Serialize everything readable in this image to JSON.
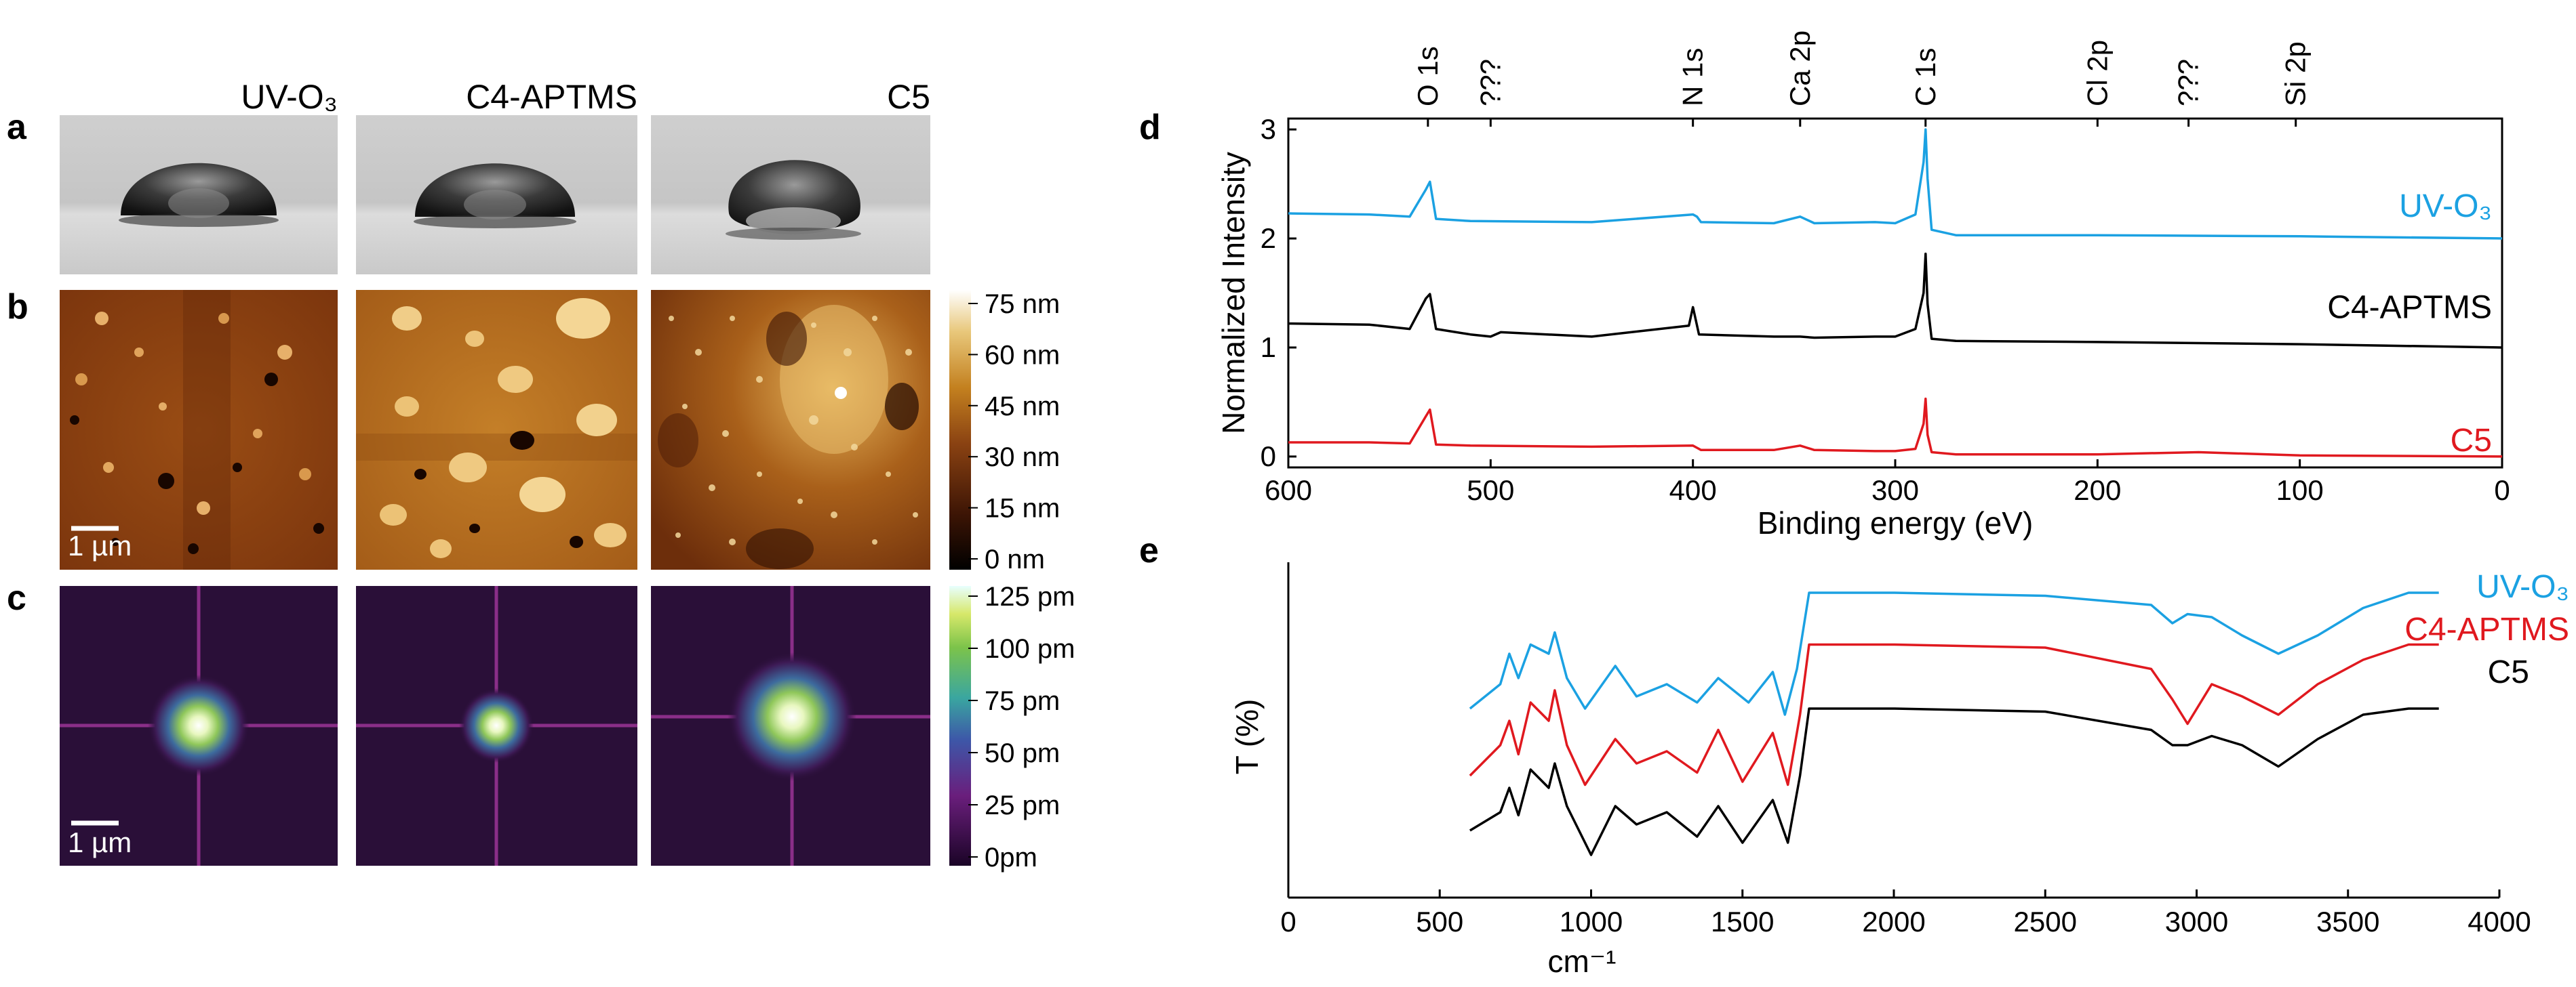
{
  "panels": {
    "a": "a",
    "b": "b",
    "c": "c",
    "d": "d",
    "e": "e"
  },
  "columns": [
    "UV-O₃",
    "C4-APTMS",
    "C5"
  ],
  "scalebar_label": "1 µm",
  "colorbar_b": [
    "75 nm",
    "60 nm",
    "45 nm",
    "30 nm",
    "15 nm",
    "0 nm"
  ],
  "colorbar_c": [
    "125 pm",
    "100 pm",
    "75 pm",
    "50 pm",
    "25 pm",
    "0pm"
  ],
  "colors": {
    "uv": "#1ba1e2",
    "c4": "#000000",
    "c5": "#e0191f",
    "afm_dark": "#1e0a02",
    "afm_mid": "#b8661e",
    "afm_light": "#fbf2d0",
    "fft_bg": "#2a0f38"
  },
  "chart_data": [
    {
      "id": "d",
      "type": "line",
      "xlabel": "Binding energy (eV)",
      "ylabel": "Normalized Intensity",
      "xlim": [
        600,
        0
      ],
      "ylim": [
        -0.1,
        3.1
      ],
      "xticks": [
        600,
        500,
        400,
        300,
        200,
        100,
        0
      ],
      "yticks": [
        0,
        1,
        2,
        3
      ],
      "peak_labels": [
        {
          "label": "O 1s",
          "x": 531
        },
        {
          "label": "???",
          "x": 500
        },
        {
          "label": "N 1s",
          "x": 400
        },
        {
          "label": "Ca 2p",
          "x": 347
        },
        {
          "label": "C 1s",
          "x": 285
        },
        {
          "label": "Cl 2p",
          "x": 200
        },
        {
          "label": "???",
          "x": 155
        },
        {
          "label": "Si 2p",
          "x": 102
        }
      ],
      "series": [
        {
          "name": "UV-O₃",
          "color": "#1ba1e2",
          "offset": 2.0,
          "x": [
            600,
            560,
            540,
            532,
            530,
            527,
            510,
            450,
            400,
            398,
            396,
            360,
            347,
            340,
            310,
            300,
            290,
            286,
            285,
            284,
            282,
            270,
            200,
            100,
            0
          ],
          "y": [
            0.23,
            0.22,
            0.2,
            0.45,
            0.52,
            0.18,
            0.16,
            0.15,
            0.22,
            0.2,
            0.15,
            0.14,
            0.2,
            0.14,
            0.15,
            0.14,
            0.22,
            0.7,
            1.0,
            0.55,
            0.08,
            0.03,
            0.03,
            0.02,
            0.0
          ]
        },
        {
          "name": "C4-APTMS",
          "color": "#000000",
          "offset": 1.0,
          "x": [
            600,
            560,
            540,
            532,
            530,
            527,
            510,
            500,
            495,
            450,
            402,
            400,
            397,
            360,
            347,
            340,
            310,
            300,
            290,
            286,
            285,
            284,
            282,
            270,
            200,
            100,
            0
          ],
          "y": [
            0.22,
            0.21,
            0.17,
            0.45,
            0.49,
            0.17,
            0.12,
            0.1,
            0.14,
            0.1,
            0.2,
            0.37,
            0.12,
            0.1,
            0.1,
            0.09,
            0.1,
            0.1,
            0.17,
            0.5,
            0.86,
            0.4,
            0.08,
            0.06,
            0.05,
            0.03,
            0.0
          ]
        },
        {
          "name": "C5",
          "color": "#e0191f",
          "offset": 0.0,
          "x": [
            600,
            560,
            540,
            532,
            530,
            527,
            510,
            450,
            400,
            398,
            396,
            360,
            347,
            340,
            310,
            300,
            290,
            286,
            285,
            284,
            282,
            270,
            200,
            150,
            100,
            0
          ],
          "y": [
            0.13,
            0.13,
            0.12,
            0.37,
            0.43,
            0.11,
            0.1,
            0.09,
            0.1,
            0.08,
            0.06,
            0.06,
            0.1,
            0.06,
            0.05,
            0.05,
            0.07,
            0.3,
            0.53,
            0.2,
            0.04,
            0.02,
            0.02,
            0.04,
            0.01,
            0.0
          ]
        }
      ]
    },
    {
      "id": "e",
      "type": "line",
      "xlabel": "cm⁻¹",
      "ylabel": "T (%)",
      "xlim": [
        0,
        4000
      ],
      "ylim": [
        0,
        1.1
      ],
      "xticks": [
        0,
        500,
        1000,
        1500,
        2000,
        2500,
        3000,
        3500,
        4000
      ],
      "series": [
        {
          "name": "UV-O₃",
          "color": "#1ba1e2",
          "x": [
            600,
            700,
            730,
            760,
            800,
            860,
            880,
            920,
            980,
            1080,
            1150,
            1250,
            1350,
            1420,
            1520,
            1600,
            1640,
            1680,
            1720,
            2000,
            2500,
            2850,
            2920,
            2970,
            3050,
            3150,
            3270,
            3400,
            3550,
            3700,
            3800
          ],
          "y": [
            0.62,
            0.7,
            0.8,
            0.72,
            0.83,
            0.8,
            0.87,
            0.72,
            0.62,
            0.76,
            0.66,
            0.7,
            0.64,
            0.72,
            0.64,
            0.74,
            0.6,
            0.75,
            1.0,
            1.0,
            0.99,
            0.96,
            0.9,
            0.93,
            0.92,
            0.86,
            0.8,
            0.86,
            0.95,
            1.0,
            1.0
          ]
        },
        {
          "name": "C4-APTMS",
          "color": "#e0191f",
          "x": [
            600,
            700,
            730,
            760,
            800,
            860,
            880,
            920,
            980,
            1080,
            1150,
            1250,
            1350,
            1420,
            1500,
            1600,
            1650,
            1690,
            1720,
            2000,
            2500,
            2850,
            2920,
            2970,
            3050,
            3150,
            3270,
            3400,
            3550,
            3700,
            3800
          ],
          "y": [
            0.4,
            0.5,
            0.58,
            0.47,
            0.64,
            0.58,
            0.68,
            0.5,
            0.37,
            0.52,
            0.44,
            0.48,
            0.41,
            0.55,
            0.38,
            0.54,
            0.37,
            0.6,
            0.83,
            0.83,
            0.82,
            0.75,
            0.65,
            0.57,
            0.7,
            0.66,
            0.6,
            0.7,
            0.78,
            0.83,
            0.83
          ]
        },
        {
          "name": "C5",
          "color": "#000000",
          "x": [
            600,
            700,
            730,
            760,
            800,
            860,
            880,
            920,
            1000,
            1080,
            1150,
            1250,
            1350,
            1420,
            1500,
            1600,
            1650,
            1690,
            1720,
            2000,
            2500,
            2850,
            2920,
            2970,
            3050,
            3150,
            3270,
            3400,
            3550,
            3700,
            3800
          ],
          "y": [
            0.22,
            0.28,
            0.36,
            0.27,
            0.42,
            0.36,
            0.44,
            0.3,
            0.14,
            0.3,
            0.24,
            0.28,
            0.2,
            0.3,
            0.18,
            0.32,
            0.18,
            0.4,
            0.62,
            0.62,
            0.61,
            0.55,
            0.5,
            0.5,
            0.53,
            0.5,
            0.43,
            0.52,
            0.6,
            0.62,
            0.62
          ]
        }
      ]
    }
  ]
}
